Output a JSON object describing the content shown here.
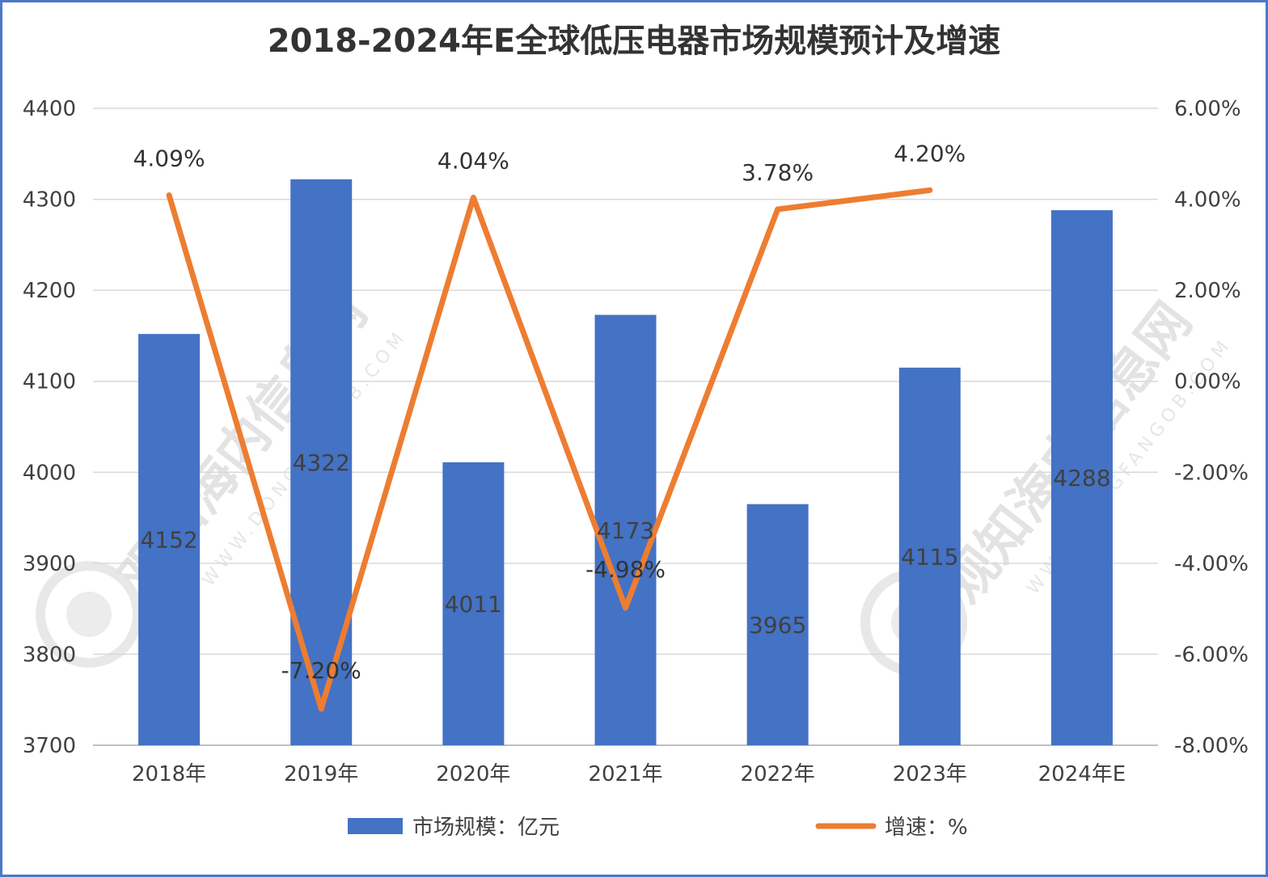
{
  "chart_data": {
    "type": "bar+line",
    "title": "2018-2024年E全球低压电器市场规模预计及增速",
    "categories": [
      "2018年",
      "2019年",
      "2020年",
      "2021年",
      "2022年",
      "2023年",
      "2024年E"
    ],
    "series": [
      {
        "name": "市场规模：亿元",
        "type": "bar",
        "axis": "left",
        "values": [
          4152,
          4322,
          4011,
          4173,
          3965,
          4115,
          4288
        ],
        "labels": [
          "4152",
          "4322",
          "4011",
          "4173",
          "3965",
          "4115",
          "4288"
        ],
        "color": "#4472c4"
      },
      {
        "name": "增速：%",
        "type": "line",
        "axis": "right",
        "values": [
          4.09,
          -7.2,
          4.04,
          -4.98,
          3.78,
          4.2,
          null
        ],
        "labels": [
          "4.09%",
          "-7.20%",
          "4.04%",
          "-4.98%",
          "3.78%",
          "4.20%",
          ""
        ],
        "color": "#ed7d31"
      }
    ],
    "y_left": {
      "min": 3700,
      "max": 4400,
      "ticks": [
        "4400",
        "4300",
        "4200",
        "4100",
        "4000",
        "3900",
        "3800",
        "3700"
      ]
    },
    "y_right": {
      "min": -8,
      "max": 6,
      "ticks": [
        "6.00%",
        "4.00%",
        "2.00%",
        "0.00%",
        "-2.00%",
        "-4.00%",
        "-6.00%",
        "-8.00%"
      ]
    },
    "grid": true,
    "legend_position": "bottom"
  },
  "watermark": {
    "text": "观知海内信息网",
    "subtext": "WWW.DONGFANGOB.COM"
  }
}
